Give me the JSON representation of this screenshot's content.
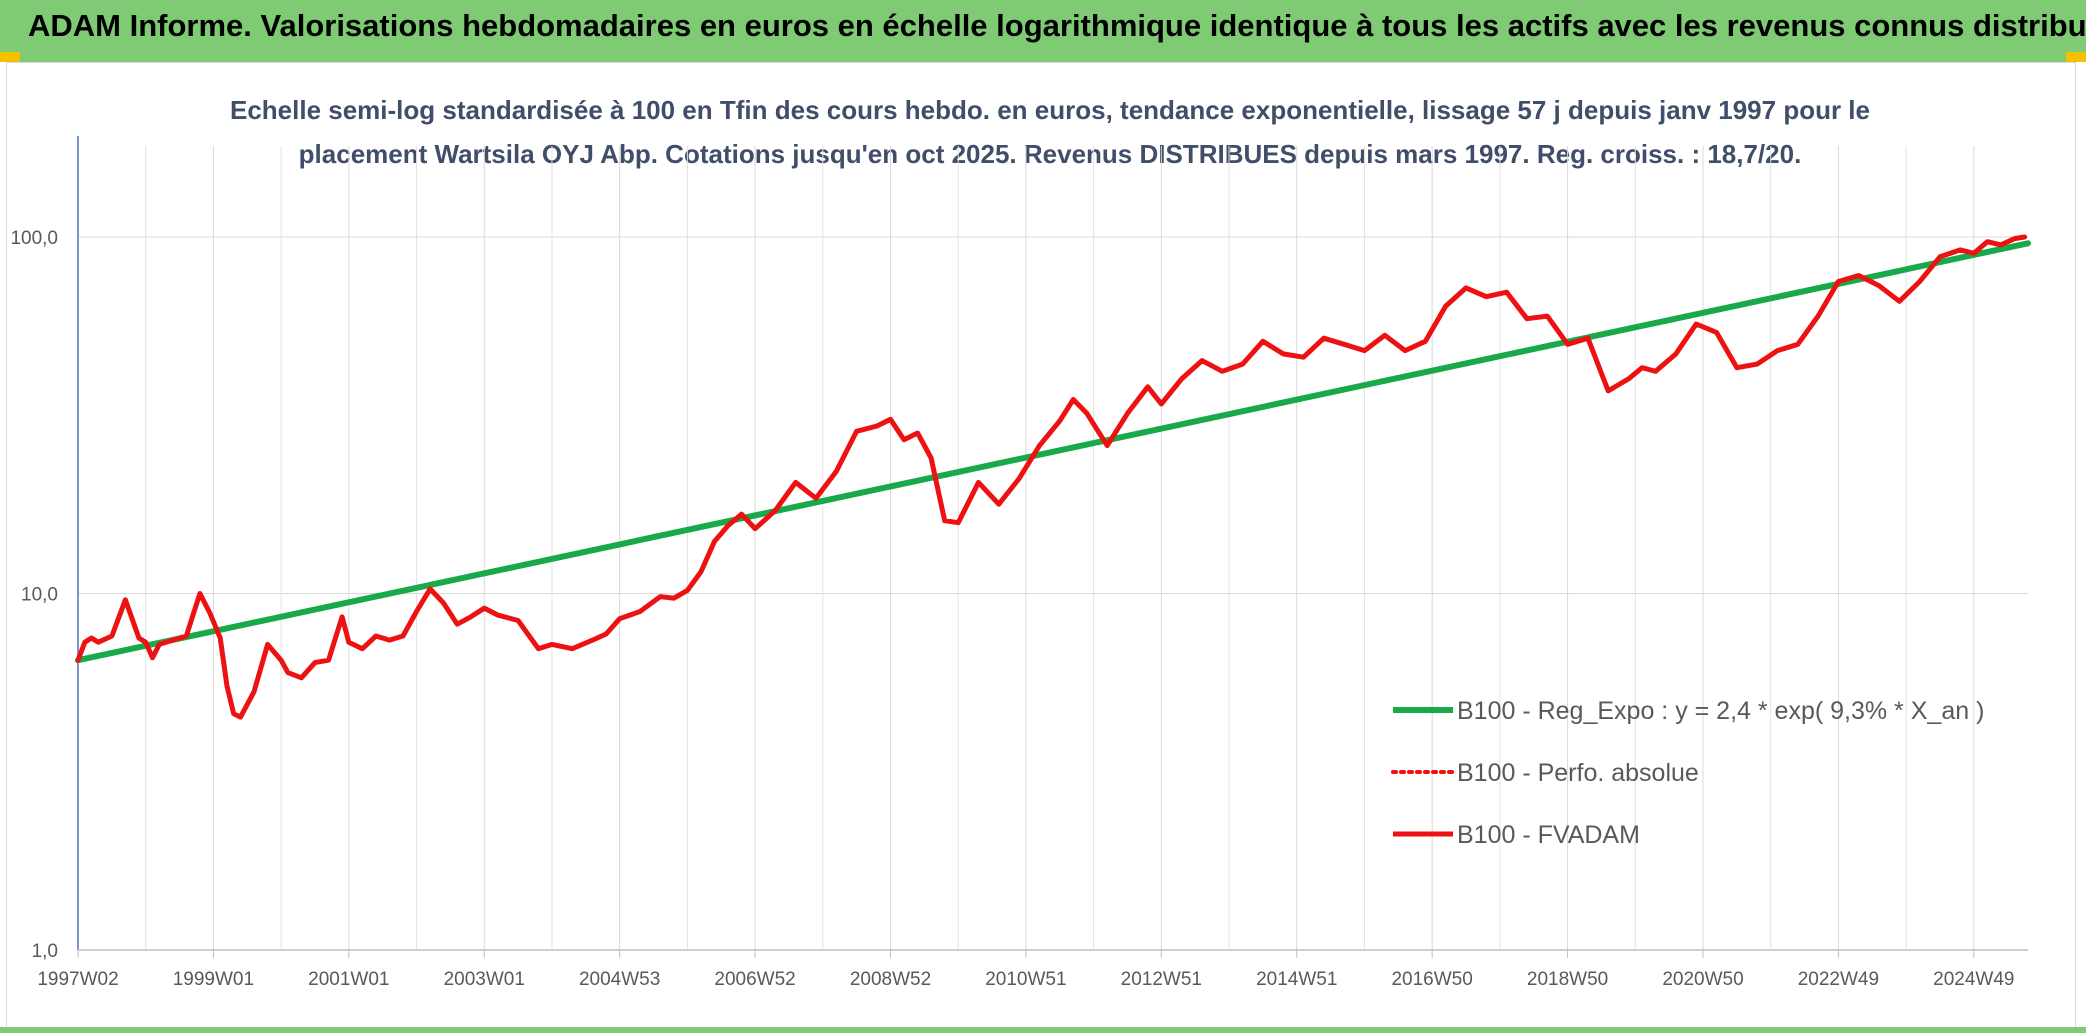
{
  "header": {
    "title": "ADAM Informe. Valorisations hebdomadaires en euros en échelle logarithmique identique à tous les actifs avec les revenus connus distribués"
  },
  "colors": {
    "banner": "#7fcb74",
    "corner": "#f5c000",
    "trend": "#19a94a",
    "perf": "#ee1111",
    "subtitle": "#404e6a"
  },
  "chart_data": {
    "type": "line",
    "subtitle_line1": "Echelle semi-log standardisée à 100 en Tfin des cours hebdo. en euros, tendance exponentielle, lissage 57 j depuis janv 1997 pour le",
    "subtitle_line2": "placement Wartsila OYJ Abp. Cotations jusqu'en oct 2025. Revenus DISTRIBUES depuis mars 1997. Reg. croiss. : 18,7/20.",
    "y_scale": "log",
    "ylim": [
      1,
      180
    ],
    "y_ticks": [
      {
        "value": 1,
        "label": "1,0"
      },
      {
        "value": 10,
        "label": "10,0"
      },
      {
        "value": 100,
        "label": "100,0"
      }
    ],
    "xlim": [
      1997.0,
      2025.8
    ],
    "x_ticks": [
      {
        "value": 1997.0,
        "label": "1997W02"
      },
      {
        "value": 1999.0,
        "label": "1999W01"
      },
      {
        "value": 2001.0,
        "label": "2001W01"
      },
      {
        "value": 2003.0,
        "label": "2003W01"
      },
      {
        "value": 2005.0,
        "label": "2004W53"
      },
      {
        "value": 2007.0,
        "label": "2006W52"
      },
      {
        "value": 2009.0,
        "label": "2008W52"
      },
      {
        "value": 2011.0,
        "label": "2010W51"
      },
      {
        "value": 2013.0,
        "label": "2012W51"
      },
      {
        "value": 2015.0,
        "label": "2014W51"
      },
      {
        "value": 2017.0,
        "label": "2016W50"
      },
      {
        "value": 2019.0,
        "label": "2018W50"
      },
      {
        "value": 2021.0,
        "label": "2020W50"
      },
      {
        "value": 2023.0,
        "label": "2022W49"
      },
      {
        "value": 2025.0,
        "label": "2024W49"
      }
    ],
    "grid": true,
    "legend_position": "bottom-right",
    "series": [
      {
        "name": "B100 - Reg_Expo : y = 2,4 * exp( 9,3% *  X_an )",
        "style": "solid-green",
        "x": [
          1997.0,
          2025.8
        ],
        "y": [
          6.5,
          96
        ]
      },
      {
        "name": "B100 - Perfo. absolue",
        "style": "dotted-red",
        "x": [],
        "y": []
      },
      {
        "name": "B100 - FVADAM",
        "style": "solid-red",
        "x": [
          1997.0,
          1997.1,
          1997.2,
          1997.3,
          1997.5,
          1997.7,
          1997.9,
          1998.0,
          1998.1,
          1998.2,
          1998.4,
          1998.6,
          1998.8,
          1998.95,
          1999.1,
          1999.2,
          1999.3,
          1999.4,
          1999.6,
          1999.8,
          2000.0,
          2000.1,
          2000.3,
          2000.5,
          2000.7,
          2000.9,
          2001.0,
          2001.2,
          2001.4,
          2001.6,
          2001.8,
          2002.0,
          2002.2,
          2002.4,
          2002.6,
          2002.8,
          2003.0,
          2003.2,
          2003.5,
          2003.8,
          2004.0,
          2004.3,
          2004.6,
          2004.8,
          2005.0,
          2005.3,
          2005.6,
          2005.8,
          2006.0,
          2006.2,
          2006.4,
          2006.6,
          2006.8,
          2007.0,
          2007.3,
          2007.6,
          2007.9,
          2008.2,
          2008.5,
          2008.8,
          2009.0,
          2009.2,
          2009.4,
          2009.6,
          2009.8,
          2010.0,
          2010.3,
          2010.6,
          2010.9,
          2011.2,
          2011.5,
          2011.7,
          2011.9,
          2012.2,
          2012.5,
          2012.8,
          2013.0,
          2013.3,
          2013.6,
          2013.9,
          2014.2,
          2014.5,
          2014.8,
          2015.1,
          2015.4,
          2015.7,
          2016.0,
          2016.3,
          2016.6,
          2016.9,
          2017.2,
          2017.5,
          2017.8,
          2018.1,
          2018.4,
          2018.7,
          2019.0,
          2019.3,
          2019.6,
          2019.9,
          2020.1,
          2020.3,
          2020.6,
          2020.9,
          2021.2,
          2021.5,
          2021.8,
          2022.1,
          2022.4,
          2022.7,
          2023.0,
          2023.3,
          2023.6,
          2023.9,
          2024.2,
          2024.5,
          2024.8,
          2025.0,
          2025.2,
          2025.4,
          2025.6,
          2025.75
        ],
        "y": [
          6.5,
          7.3,
          7.5,
          7.3,
          7.6,
          9.6,
          7.5,
          7.3,
          6.6,
          7.2,
          7.4,
          7.6,
          10.0,
          8.8,
          7.5,
          5.5,
          4.6,
          4.5,
          5.3,
          7.2,
          6.5,
          6.0,
          5.8,
          6.4,
          6.5,
          8.6,
          7.3,
          7.0,
          7.6,
          7.4,
          7.6,
          8.9,
          10.3,
          9.4,
          8.2,
          8.6,
          9.1,
          8.7,
          8.4,
          7.0,
          7.2,
          7.0,
          7.4,
          7.7,
          8.5,
          8.9,
          9.8,
          9.7,
          10.2,
          11.5,
          14.0,
          15.5,
          16.7,
          15.2,
          17.1,
          20.5,
          18.5,
          22.0,
          28.5,
          29.5,
          30.8,
          27.0,
          28.2,
          24.0,
          16.0,
          15.8,
          20.5,
          17.8,
          21.0,
          26.0,
          30.5,
          35.0,
          32.0,
          26.0,
          32.0,
          38.0,
          34.0,
          40.0,
          45.0,
          42.0,
          44.0,
          51.0,
          47.0,
          46.0,
          52.0,
          50.0,
          48.0,
          53.0,
          48.0,
          51.0,
          64.0,
          72.0,
          68.0,
          70.0,
          59.0,
          60.0,
          50.0,
          52.0,
          37.0,
          40.0,
          43.0,
          42.0,
          47.0,
          57.0,
          54.0,
          43.0,
          44.0,
          48.0,
          50.0,
          60.0,
          75.0,
          78.0,
          73.0,
          66.0,
          75.0,
          88.0,
          92.0,
          90.0,
          97.0,
          95.0,
          99.0,
          100.0
        ]
      }
    ]
  }
}
